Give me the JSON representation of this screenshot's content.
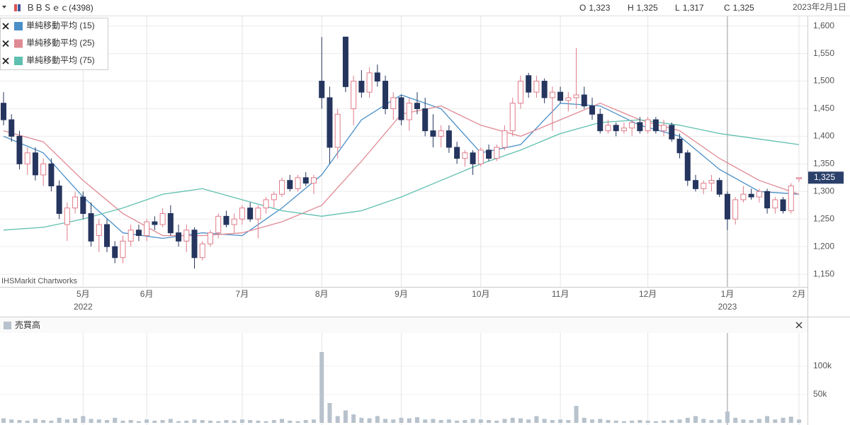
{
  "chart_data": [
    {
      "type": "candlestick",
      "title": "ＢＢＳｅｃ(4398)",
      "date": "2023年2月1日",
      "ohlc": [
        {
          "key": "O",
          "label": "1,323"
        },
        {
          "key": "H",
          "label": "1,325"
        },
        {
          "key": "L",
          "label": "1,317"
        },
        {
          "key": "C",
          "label": "1,325"
        }
      ],
      "watermark": "IHSMarkit Chartworks",
      "last_price": {
        "value": 1325,
        "label": "1,325"
      },
      "up_color": "#e07b8a",
      "down_color": "#25355e",
      "categories": [
        null,
        null,
        null,
        null,
        null,
        null,
        null,
        null,
        null,
        null,
        "5月",
        null,
        null,
        null,
        null,
        null,
        null,
        null,
        "6月",
        null,
        null,
        null,
        null,
        null,
        null,
        null,
        null,
        null,
        null,
        null,
        "7月",
        null,
        null,
        null,
        null,
        null,
        null,
        null,
        null,
        null,
        "8月",
        null,
        null,
        null,
        null,
        null,
        null,
        null,
        null,
        null,
        "9月",
        null,
        null,
        null,
        null,
        null,
        null,
        null,
        null,
        null,
        "10月",
        null,
        null,
        null,
        null,
        null,
        null,
        null,
        null,
        null,
        "11月",
        null,
        null,
        null,
        null,
        null,
        null,
        null,
        null,
        null,
        null,
        "12月",
        null,
        null,
        null,
        null,
        null,
        null,
        null,
        null,
        null,
        "1月",
        null,
        null,
        null,
        null,
        null,
        null,
        null,
        null,
        "2月"
      ],
      "year_labels": [
        null,
        null,
        null,
        null,
        null,
        null,
        null,
        null,
        null,
        null,
        "2022",
        null,
        null,
        null,
        null,
        null,
        null,
        null,
        null,
        null,
        null,
        null,
        null,
        null,
        null,
        null,
        null,
        null,
        null,
        null,
        null,
        null,
        null,
        null,
        null,
        null,
        null,
        null,
        null,
        null,
        null,
        null,
        null,
        null,
        null,
        null,
        null,
        null,
        null,
        null,
        null,
        null,
        null,
        null,
        null,
        null,
        null,
        null,
        null,
        null,
        null,
        null,
        null,
        null,
        null,
        null,
        null,
        null,
        null,
        null,
        null,
        null,
        null,
        null,
        null,
        null,
        null,
        null,
        null,
        null,
        null,
        null,
        null,
        null,
        null,
        null,
        null,
        null,
        null,
        null,
        null,
        "2023",
        null,
        null,
        null,
        null,
        null,
        null,
        null,
        null,
        null
      ],
      "open": [
        1460,
        1430,
        1400,
        1350,
        1370,
        1330,
        1350,
        1310,
        1240,
        1270,
        1290,
        1260,
        1220,
        1240,
        1200,
        1180,
        1210,
        1230,
        1220,
        1245,
        1240,
        1260,
        1225,
        1210,
        1230,
        1180,
        1205,
        1225,
        1255,
        1240,
        1250,
        1270,
        1250,
        1270,
        1285,
        1295,
        1320,
        1305,
        1325,
        1315,
        1500,
        1470,
        1380,
        1580,
        1450,
        1500,
        1480,
        1515,
        1500,
        1450,
        1470,
        1430,
        1460,
        1450,
        1410,
        1400,
        1410,
        1380,
        1360,
        1370,
        1350,
        1375,
        1360,
        1380,
        1410,
        1460,
        1510,
        1480,
        1500,
        1470,
        1480,
        1465,
        1470,
        1475,
        1455,
        1440,
        1410,
        1420,
        1410,
        1415,
        1425,
        1410,
        1430,
        1410,
        1420,
        1395,
        1370,
        1320,
        1305,
        1315,
        1320,
        1295,
        1250,
        1285,
        1295,
        1290,
        1300,
        1270,
        1285,
        1265,
        1323
      ],
      "high": [
        1480,
        1440,
        1410,
        1380,
        1380,
        1360,
        1360,
        1320,
        1280,
        1300,
        1300,
        1280,
        1250,
        1250,
        1210,
        1220,
        1240,
        1240,
        1250,
        1255,
        1270,
        1275,
        1240,
        1240,
        1235,
        1210,
        1230,
        1260,
        1265,
        1260,
        1275,
        1280,
        1275,
        1290,
        1300,
        1325,
        1330,
        1330,
        1335,
        1330,
        1580,
        1490,
        1450,
        1580,
        1510,
        1520,
        1525,
        1530,
        1510,
        1480,
        1475,
        1470,
        1480,
        1470,
        1440,
        1420,
        1420,
        1390,
        1375,
        1375,
        1380,
        1385,
        1385,
        1420,
        1470,
        1510,
        1515,
        1510,
        1505,
        1490,
        1490,
        1480,
        1560,
        1490,
        1470,
        1450,
        1430,
        1425,
        1425,
        1430,
        1435,
        1435,
        1435,
        1430,
        1425,
        1405,
        1375,
        1330,
        1320,
        1330,
        1325,
        1300,
        1290,
        1310,
        1305,
        1305,
        1305,
        1290,
        1290,
        1315,
        1325
      ],
      "low": [
        1420,
        1390,
        1340,
        1330,
        1320,
        1310,
        1300,
        1250,
        1210,
        1260,
        1250,
        1200,
        1190,
        1190,
        1170,
        1170,
        1200,
        1210,
        1210,
        1230,
        1235,
        1220,
        1200,
        1190,
        1160,
        1175,
        1200,
        1215,
        1235,
        1225,
        1240,
        1245,
        1215,
        1260,
        1270,
        1290,
        1300,
        1300,
        1310,
        1295,
        1450,
        1350,
        1360,
        1480,
        1420,
        1470,
        1470,
        1490,
        1440,
        1430,
        1420,
        1410,
        1440,
        1400,
        1380,
        1380,
        1370,
        1350,
        1345,
        1330,
        1345,
        1355,
        1355,
        1375,
        1400,
        1450,
        1470,
        1470,
        1460,
        1410,
        1460,
        1445,
        1450,
        1450,
        1430,
        1405,
        1405,
        1400,
        1405,
        1400,
        1405,
        1405,
        1405,
        1400,
        1390,
        1360,
        1310,
        1300,
        1295,
        1300,
        1290,
        1230,
        1240,
        1280,
        1285,
        1280,
        1260,
        1260,
        1260,
        1260,
        1317
      ],
      "close": [
        1430,
        1400,
        1350,
        1370,
        1330,
        1350,
        1310,
        1260,
        1270,
        1290,
        1260,
        1210,
        1240,
        1200,
        1180,
        1210,
        1230,
        1220,
        1245,
        1240,
        1260,
        1225,
        1210,
        1230,
        1180,
        1205,
        1225,
        1255,
        1240,
        1250,
        1270,
        1250,
        1270,
        1285,
        1295,
        1320,
        1305,
        1325,
        1315,
        1325,
        1470,
        1380,
        1440,
        1490,
        1500,
        1480,
        1515,
        1500,
        1450,
        1470,
        1430,
        1460,
        1450,
        1410,
        1400,
        1410,
        1380,
        1360,
        1370,
        1350,
        1375,
        1360,
        1380,
        1410,
        1460,
        1500,
        1480,
        1500,
        1470,
        1480,
        1465,
        1470,
        1475,
        1455,
        1440,
        1410,
        1420,
        1410,
        1415,
        1425,
        1410,
        1430,
        1410,
        1420,
        1395,
        1370,
        1320,
        1305,
        1315,
        1320,
        1295,
        1250,
        1285,
        1295,
        1290,
        1300,
        1270,
        1285,
        1265,
        1310,
        1325
      ],
      "ylim": [
        1127,
        1615
      ],
      "yticks": [
        {
          "value": 1150,
          "label": "1,150"
        },
        {
          "value": 1200,
          "label": "1,200"
        },
        {
          "value": 1250,
          "label": "1,250"
        },
        {
          "value": 1300,
          "label": "1,300"
        },
        {
          "value": 1350,
          "label": "1,350"
        },
        {
          "value": 1400,
          "label": "1,400"
        },
        {
          "value": 1450,
          "label": "1,450"
        },
        {
          "value": 1500,
          "label": "1,500"
        },
        {
          "value": 1550,
          "label": "1,550"
        },
        {
          "value": 1600,
          "label": "1,600"
        }
      ],
      "grid": true,
      "series": [
        {
          "name": "単純移動平均 (15)",
          "color": "#4a8fc7",
          "x": [
            0,
            5,
            10,
            15,
            20,
            25,
            30,
            35,
            40,
            45,
            50,
            55,
            60,
            65,
            70,
            75,
            80,
            85,
            90,
            95,
            100
          ],
          "values": [
            1400,
            1370,
            1290,
            1225,
            1215,
            1225,
            1220,
            1270,
            1330,
            1430,
            1475,
            1450,
            1370,
            1385,
            1460,
            1455,
            1420,
            1400,
            1340,
            1300,
            1295
          ]
        },
        {
          "name": "単純移動平均 (25)",
          "color": "#e08a94",
          "x": [
            0,
            5,
            10,
            15,
            20,
            25,
            30,
            35,
            40,
            45,
            50,
            55,
            60,
            65,
            70,
            75,
            80,
            85,
            90,
            95,
            100
          ],
          "values": [
            1410,
            1390,
            1320,
            1260,
            1220,
            1220,
            1225,
            1245,
            1275,
            1355,
            1440,
            1455,
            1420,
            1400,
            1430,
            1460,
            1430,
            1410,
            1360,
            1320,
            1295
          ]
        },
        {
          "name": "単純移動平均 (75)",
          "color": "#5fbfb0",
          "x": [
            0,
            5,
            10,
            15,
            20,
            25,
            30,
            35,
            40,
            45,
            50,
            55,
            60,
            65,
            70,
            75,
            80,
            85,
            90,
            95,
            100
          ],
          "values": [
            1230,
            1235,
            1250,
            1270,
            1295,
            1305,
            1285,
            1265,
            1255,
            1265,
            1290,
            1320,
            1350,
            1375,
            1405,
            1425,
            1430,
            1420,
            1405,
            1395,
            1385
          ]
        }
      ]
    },
    {
      "type": "bar",
      "title": "売買高",
      "color": "#b7c2cc",
      "values": [
        8000,
        6000,
        5000,
        4000,
        7000,
        5000,
        4000,
        9000,
        6000,
        8000,
        12000,
        7000,
        6000,
        5000,
        9000,
        4000,
        5000,
        3000,
        6000,
        4000,
        5000,
        7000,
        3000,
        4000,
        6000,
        5000,
        4000,
        3000,
        5000,
        4000,
        6000,
        5000,
        4000,
        3000,
        5000,
        7000,
        4000,
        3000,
        5000,
        6000,
        125000,
        35000,
        12000,
        22000,
        15000,
        9000,
        8000,
        12000,
        7000,
        6000,
        9000,
        8000,
        10000,
        6000,
        7000,
        5000,
        6000,
        4000,
        5000,
        7000,
        6000,
        5000,
        4000,
        7000,
        9000,
        8000,
        6000,
        12000,
        7000,
        5000,
        6000,
        5000,
        30000,
        9000,
        6000,
        7000,
        5000,
        4000,
        3000,
        4000,
        5000,
        4000,
        3000,
        4000,
        5000,
        6000,
        9000,
        12000,
        7000,
        5000,
        6000,
        20000,
        9000,
        6000,
        5000,
        7000,
        12000,
        6000,
        9000,
        11000,
        6000
      ],
      "ylim": [
        0,
        160000
      ],
      "yticks": [
        {
          "value": 50000,
          "label": "50k"
        },
        {
          "value": 100000,
          "label": "100k"
        }
      ],
      "grid": true
    }
  ]
}
